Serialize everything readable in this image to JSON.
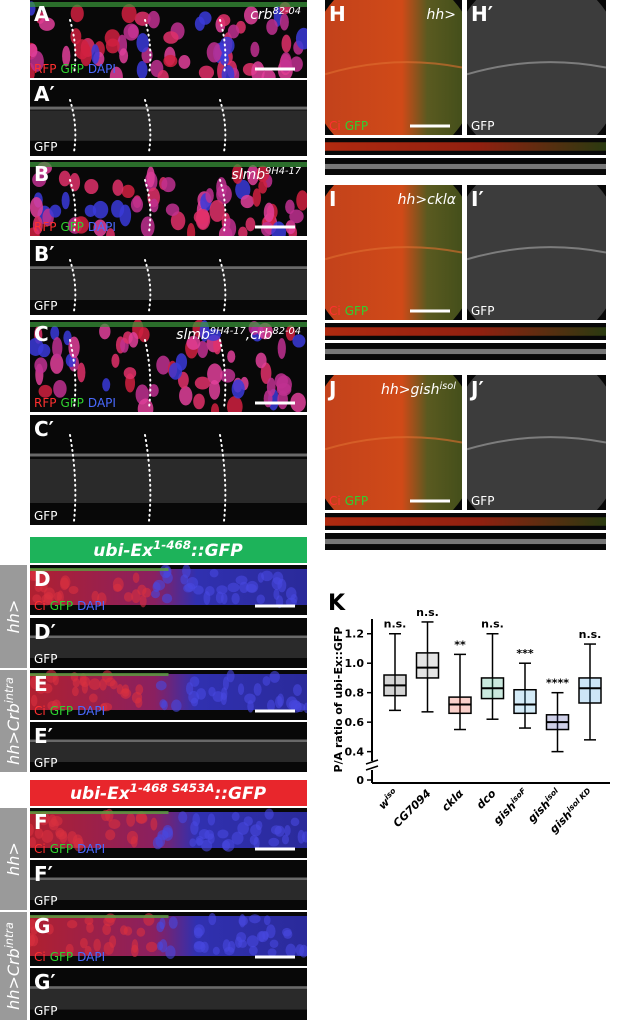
{
  "left_panels": [
    {
      "letter": "A",
      "genotype": [
        "crb",
        "82-04"
      ],
      "channels": [
        "RFP",
        "GFP",
        "DAPI"
      ]
    },
    {
      "letter": "A′",
      "channels": [
        "GFP"
      ]
    },
    {
      "letter": "B",
      "genotype": [
        "slmb",
        "9H4-17"
      ],
      "channels": [
        "RFP",
        "GFP",
        "DAPI"
      ]
    },
    {
      "letter": "B′",
      "channels": [
        "GFP"
      ]
    },
    {
      "letter": "C",
      "genotype": [
        "slmb",
        "9H4-17",
        ",crb",
        "82-04"
      ],
      "channels": [
        "RFP",
        "GFP",
        "DAPI"
      ]
    },
    {
      "letter": "C′",
      "channels": [
        "GFP"
      ]
    },
    {
      "letter": "D",
      "channels": [
        "Ci",
        "GFP",
        "DAPI"
      ]
    },
    {
      "letter": "D′",
      "channels": [
        "GFP"
      ]
    },
    {
      "letter": "E",
      "channels": [
        "Ci",
        "GFP",
        "DAPI"
      ]
    },
    {
      "letter": "E′",
      "channels": [
        "GFP"
      ]
    },
    {
      "letter": "F",
      "channels": [
        "Ci",
        "GFP",
        "DAPI"
      ]
    },
    {
      "letter": "F′",
      "channels": [
        "GFP"
      ]
    },
    {
      "letter": "G",
      "channels": [
        "Ci",
        "GFP",
        "DAPI"
      ]
    },
    {
      "letter": "G′",
      "channels": [
        "GFP"
      ]
    }
  ],
  "headers": [
    [
      "ubi-Ex",
      "1-468",
      "::GFP"
    ],
    [
      "ubi-Ex",
      "1-468 S453A",
      "::GFP"
    ]
  ],
  "side_labels": [
    [
      "hh>"
    ],
    [
      "hh>Crb",
      "intra"
    ],
    [
      "hh>"
    ],
    [
      "hh>Crb",
      "intra"
    ]
  ],
  "right_panels": [
    {
      "letter": "H",
      "genotype": [
        "hh>"
      ],
      "channels": [
        "Ci",
        "GFP"
      ]
    },
    {
      "letter": "H′",
      "channels": [
        "GFP"
      ]
    },
    {
      "letter": "I",
      "genotype": [
        "hh>cklα"
      ],
      "channels": [
        "Ci",
        "GFP"
      ]
    },
    {
      "letter": "I′",
      "channels": [
        "GFP"
      ]
    },
    {
      "letter": "J",
      "genotype": [
        "hh>gish",
        "isol"
      ],
      "channels": [
        "Ci",
        "GFP"
      ]
    },
    {
      "letter": "J′",
      "channels": [
        "GFP"
      ]
    }
  ],
  "chart_data": {
    "type": "box",
    "panel_letter": "K",
    "y_label": "P/A ratio of ubi-Ex::GFP",
    "categories": [
      "w",
      "CG7094",
      "cklα",
      "dco",
      "gish",
      "gish",
      "gish"
    ],
    "category_superscripts": [
      "iso",
      null,
      null,
      null,
      "isoF",
      "isol",
      "isol KD"
    ],
    "min": [
      0.68,
      0.67,
      0.55,
      0.62,
      0.56,
      0.4,
      0.48
    ],
    "q1": [
      0.78,
      0.9,
      0.66,
      0.76,
      0.66,
      0.55,
      0.73
    ],
    "median": [
      0.85,
      0.97,
      0.72,
      0.83,
      0.72,
      0.6,
      0.83
    ],
    "q3": [
      0.92,
      1.07,
      0.77,
      0.9,
      0.82,
      0.65,
      0.9
    ],
    "max": [
      1.2,
      1.28,
      1.06,
      1.2,
      1.0,
      0.8,
      1.13
    ],
    "colors": [
      "#555555",
      "#999999",
      "#e8452c",
      "#2aa67a",
      "#55b0e0",
      "#3a3f9e",
      "#3399dd"
    ],
    "annotations": [
      "n.s.",
      "n.s.",
      "**",
      "n.s.",
      "***",
      "****",
      "n.s."
    ],
    "ylim": [
      0.35,
      1.3
    ],
    "yticks": [
      0,
      0.4,
      0.6,
      0.8,
      {
        "value": 1,
        "label": "1.0"
      },
      1.2
    ]
  }
}
